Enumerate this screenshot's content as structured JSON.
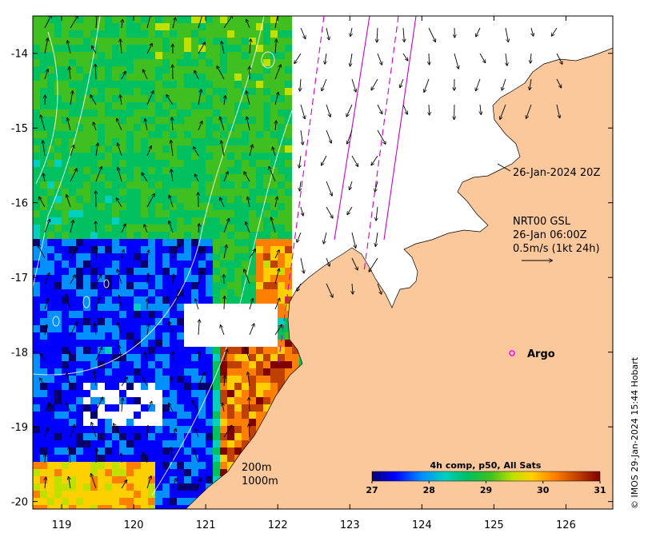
{
  "map": {
    "x_ticks": [
      "119",
      "120",
      "121",
      "122",
      "123",
      "124",
      "125",
      "126"
    ],
    "y_ticks": [
      "-14",
      "-15",
      "-16",
      "-17",
      "-18",
      "-19",
      "-20"
    ],
    "lon_range": [
      118.6,
      126.65
    ],
    "lat_range": [
      -13.5,
      -20.1
    ]
  },
  "annotations": {
    "timestamp": "26-Jan-2024 20Z",
    "product_line1": "NRT00 GSL",
    "product_line2": "26-Jan 06:00Z",
    "product_line3": "0.5m/s (1kt 24h)",
    "argo_label": "Argo",
    "contour_200": "200m",
    "contour_1000": "1000m",
    "credit": "© IMOS 29-Jan-2024 15:44 Hobart"
  },
  "colorbar": {
    "title": "4h comp, p50, All Sats",
    "ticks": [
      "27",
      "28",
      "29",
      "30",
      "31"
    ],
    "range": [
      27,
      31
    ],
    "stops": [
      "#08006e",
      "#0000ff",
      "#0090ff",
      "#00d0c0",
      "#00c060",
      "#40c020",
      "#c0e000",
      "#ffd000",
      "#ff8000",
      "#c04000",
      "#800000"
    ]
  },
  "colors": {
    "land": "#fbc89c",
    "nodata": "#ffffff",
    "track": "#cc00cc",
    "argo": "#ff00ff"
  }
}
